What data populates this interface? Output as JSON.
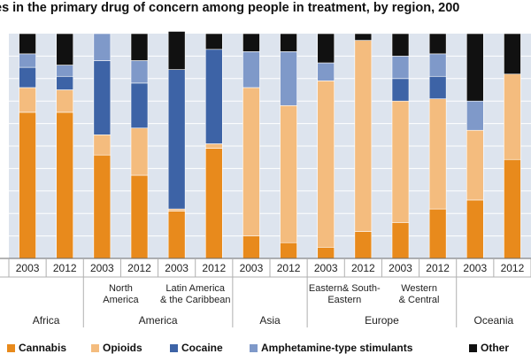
{
  "title": "es in the primary drug of concern among people in treatment, by region, 200",
  "colors": {
    "Cannabis": "#e88a1c",
    "Opioids": "#f4bc7e",
    "Cocaine": "#3d63a6",
    "Amphetamine-type stimulants": "#7f99c9",
    "Other": "#111111",
    "plot_bg": "#dde4ee",
    "grid": "#ffffff"
  },
  "legend": [
    "Cannabis",
    "Opioids",
    "Cocaine",
    "Amphetamine-type stimulants",
    "Other"
  ],
  "chart_data": {
    "type": "bar",
    "stacked": true,
    "title": "es in the primary drug of concern among people in treatment, by region, 200",
    "categories": [
      "2003",
      "2012",
      "2003",
      "2012",
      "2003",
      "2012",
      "2003",
      "2012",
      "2003",
      "2012",
      "2003",
      "2012",
      "2003",
      "2012"
    ],
    "subgroups": [
      "",
      "",
      "North America",
      "",
      "Latin America & the Caribbean",
      "",
      "",
      "",
      "Eastern& South-Eastern",
      "",
      "Western & Central",
      "",
      "",
      ""
    ],
    "groups": [
      {
        "name": "Africa",
        "bars": 2
      },
      {
        "name": "America",
        "bars": 4
      },
      {
        "name": "Asia",
        "bars": 2
      },
      {
        "name": "Europe",
        "bars": 4
      },
      {
        "name": "Oceania",
        "bars": 2
      }
    ],
    "ylim": [
      0,
      100
    ],
    "grid": true,
    "legend_position": "bottom",
    "series": [
      {
        "name": "Cannabis",
        "values": [
          65,
          65,
          46,
          37,
          21,
          49,
          10,
          7,
          5,
          12,
          16,
          22,
          26,
          44
        ]
      },
      {
        "name": "Opioids",
        "values": [
          11,
          10,
          9,
          21,
          1,
          2,
          66,
          61,
          74,
          85,
          54,
          49,
          31,
          38
        ]
      },
      {
        "name": "Cocaine",
        "values": [
          9,
          6,
          33,
          20,
          62,
          42,
          0,
          0,
          0,
          0,
          10,
          10,
          0,
          0
        ]
      },
      {
        "name": "Amphetamine-type stimulants",
        "values": [
          6,
          5,
          12,
          10,
          0,
          0,
          16,
          24,
          8,
          0,
          10,
          10,
          13,
          0
        ]
      },
      {
        "name": "Other",
        "values": [
          9,
          14,
          0,
          12,
          17,
          7,
          8,
          8,
          13,
          3,
          10,
          9,
          30,
          18
        ]
      }
    ]
  }
}
